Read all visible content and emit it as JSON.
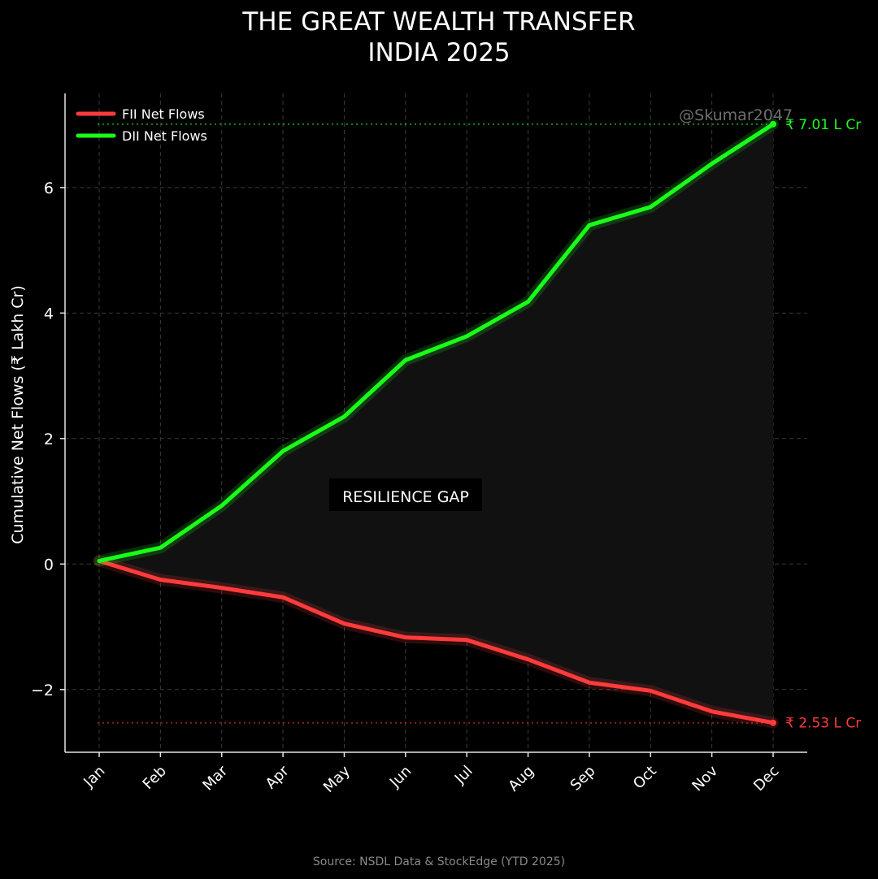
{
  "title_line1": "THE GREAT WEALTH TRANSFER",
  "title_line2": "INDIA 2025",
  "source": "Source: NSDL Data & StockEdge (YTD 2025)",
  "watermark": "@Skumar2047",
  "colors": {
    "fii": "#ff3b3b",
    "dii": "#1aff1a",
    "background": "#000000",
    "gap_fill": "#111111"
  },
  "chart_data": {
    "type": "line",
    "ylabel": "Cumulative Net Flows (₹ Lakh Cr)",
    "xlabel": "",
    "categories": [
      "Jan",
      "Feb",
      "Mar",
      "Apr",
      "May",
      "Jun",
      "Jul",
      "Aug",
      "Sep",
      "Oct",
      "Nov",
      "Dec"
    ],
    "ylim": [
      -3.0,
      7.5
    ],
    "yticks": [
      -2,
      0,
      2,
      4,
      6
    ],
    "grid": true,
    "legend_position": "top-left",
    "series": [
      {
        "name": "FII Net Flows",
        "color": "#ff3b3b",
        "values": [
          0.05,
          -0.25,
          -0.38,
          -0.53,
          -0.95,
          -1.17,
          -1.21,
          -1.52,
          -1.89,
          -2.02,
          -2.35,
          -2.53
        ]
      },
      {
        "name": "DII Net Flows",
        "color": "#1aff1a",
        "values": [
          0.05,
          0.26,
          0.93,
          1.8,
          2.35,
          3.25,
          3.63,
          4.18,
          5.4,
          5.69,
          6.38,
          7.01
        ]
      }
    ],
    "annotations": {
      "gap_label": "RESILIENCE GAP",
      "dii_end_label": "₹ 7.01 L Cr",
      "fii_end_label": "₹ 2.53 L Cr"
    }
  }
}
